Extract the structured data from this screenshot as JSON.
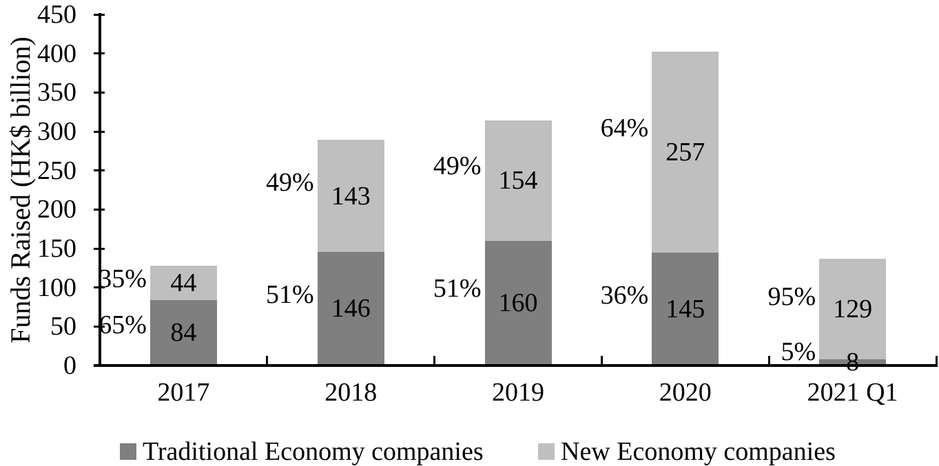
{
  "chart_data": {
    "type": "bar",
    "stacked": true,
    "title": "",
    "xlabel": "",
    "ylabel": "Funds Raised (HK$ billion)",
    "ylim": [
      0,
      450
    ],
    "ytick_step": 50,
    "yticks": [
      "0",
      "50",
      "100",
      "150",
      "200",
      "250",
      "300",
      "350",
      "400",
      "450"
    ],
    "grid": false,
    "legend_position": "bottom",
    "categories": [
      "2017",
      "2018",
      "2019",
      "2020",
      "2021 Q1"
    ],
    "series": [
      {
        "name": "Traditional Economy companies",
        "color": "#7f7f7f",
        "values": [
          84,
          146,
          160,
          145,
          8
        ],
        "pct_labels": [
          "65%",
          "51%",
          "51%",
          "36%",
          "5%"
        ]
      },
      {
        "name": "New Economy companies",
        "color": "#bfbfbf",
        "values": [
          44,
          143,
          154,
          257,
          129
        ],
        "pct_labels": [
          "35%",
          "49%",
          "49%",
          "64%",
          "95%"
        ]
      }
    ]
  },
  "colors": {
    "axis": "#000000",
    "text": "#000000",
    "background": "#ffffff"
  }
}
